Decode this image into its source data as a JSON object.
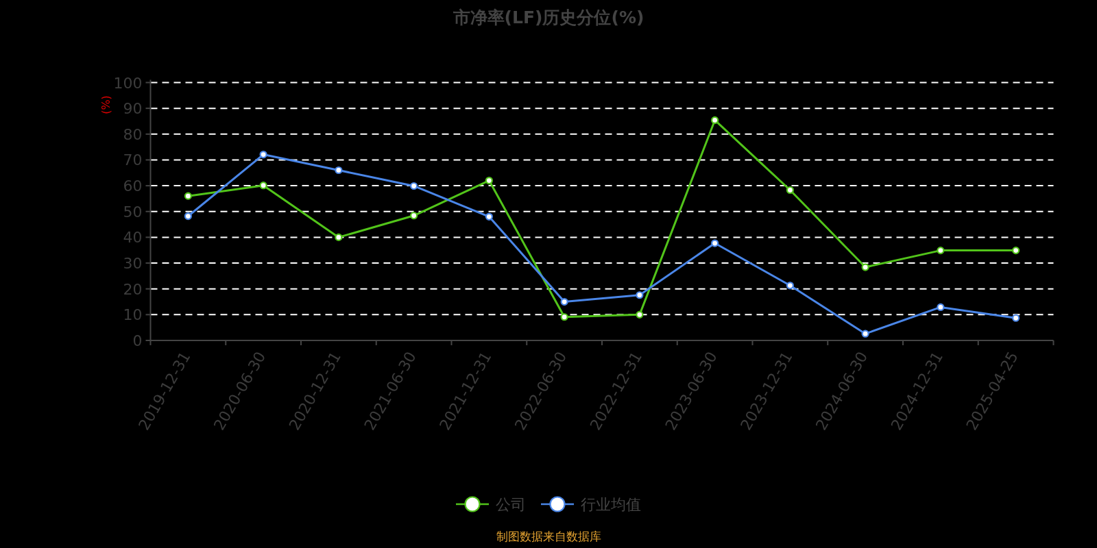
{
  "chart_data": {
    "type": "line",
    "title": "市净率(LF)历史分位(%)",
    "ylabel": "(%)",
    "categories": [
      "2019-12-31",
      "2020-06-30",
      "2020-12-31",
      "2021-06-30",
      "2021-12-31",
      "2022-06-30",
      "2022-12-31",
      "2023-06-30",
      "2023-12-31",
      "2024-06-30",
      "2024-12-31",
      "2025-04-25"
    ],
    "series": [
      {
        "name": "公司",
        "color": "#52c41a",
        "values": [
          56.0,
          60.1,
          40.0,
          48.4,
          62.0,
          9.1,
          10.0,
          85.4,
          58.3,
          28.4,
          34.9,
          34.9
        ]
      },
      {
        "name": "行业均值",
        "color": "#4a86e8",
        "values": [
          48.2,
          72.1,
          66.0,
          59.9,
          48.0,
          15.0,
          17.6,
          37.7,
          21.3,
          2.6,
          12.9,
          8.7
        ]
      }
    ],
    "ylim": [
      0,
      100
    ],
    "yticks": [
      0,
      10,
      20,
      30,
      40,
      50,
      60,
      70,
      80,
      90,
      100
    ],
    "grid": "y",
    "legend": "bottom",
    "marker": "circle",
    "line_style": "solid",
    "annotations": [
      "制图数据来自数据库"
    ]
  }
}
